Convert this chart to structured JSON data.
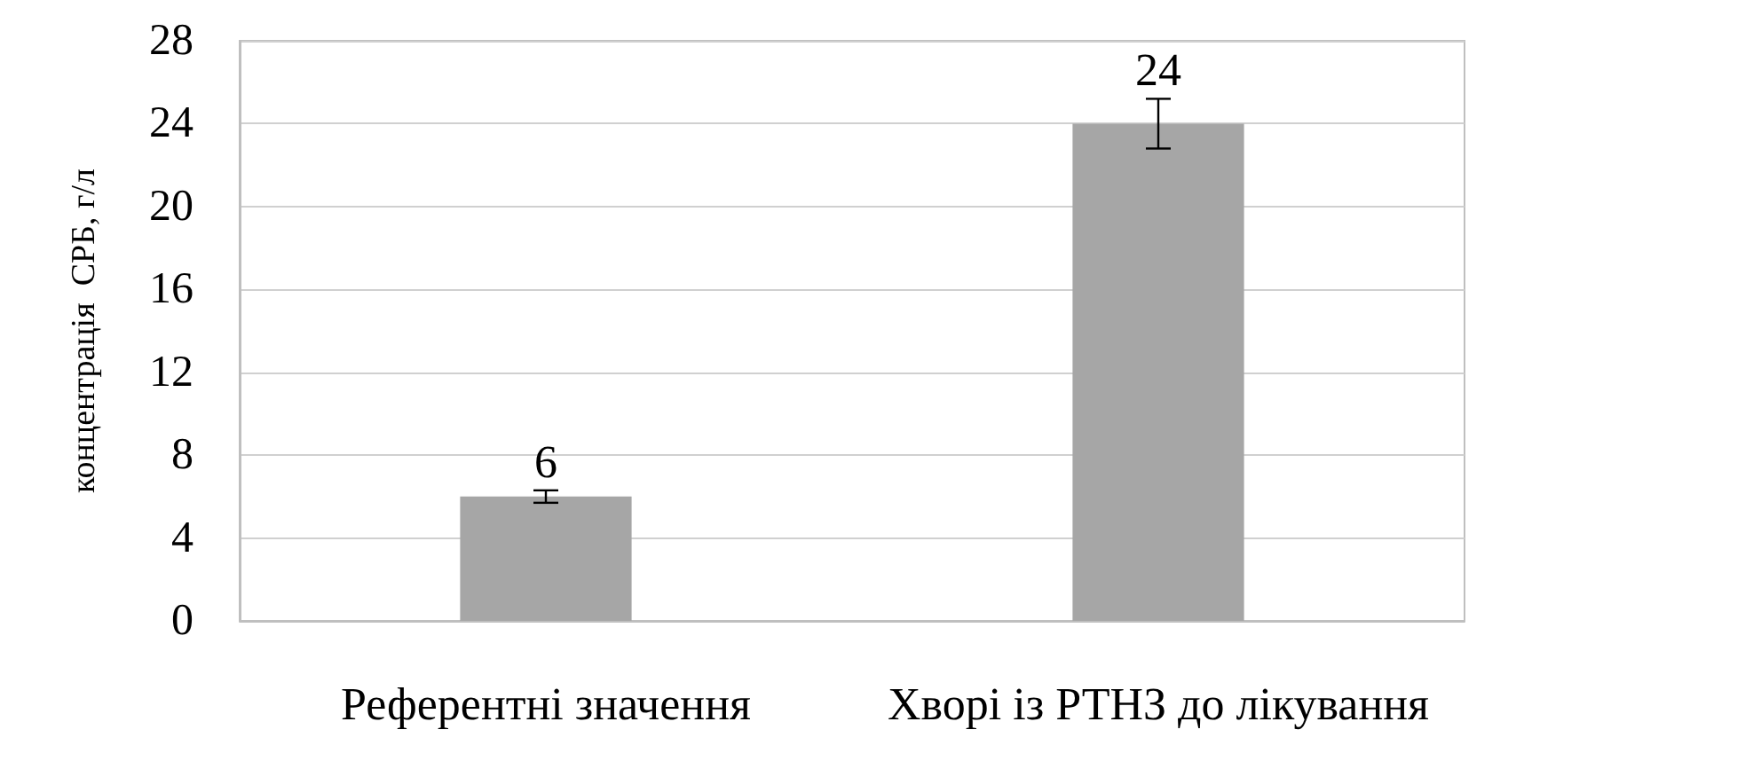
{
  "chart_data": {
    "type": "bar",
    "ylabel": "концентрація  СРБ, г/л",
    "categories": [
      "Референтні значення",
      "Хворі із РТНЗ до лікування"
    ],
    "values": [
      6,
      24
    ],
    "color": "#a6a6a6",
    "errors": [
      0.3,
      1.2
    ],
    "data_labels": true,
    "ylim": [
      0,
      28
    ],
    "yticks": [
      0,
      4,
      8,
      12,
      16,
      20,
      24,
      28
    ],
    "grid": "y"
  }
}
